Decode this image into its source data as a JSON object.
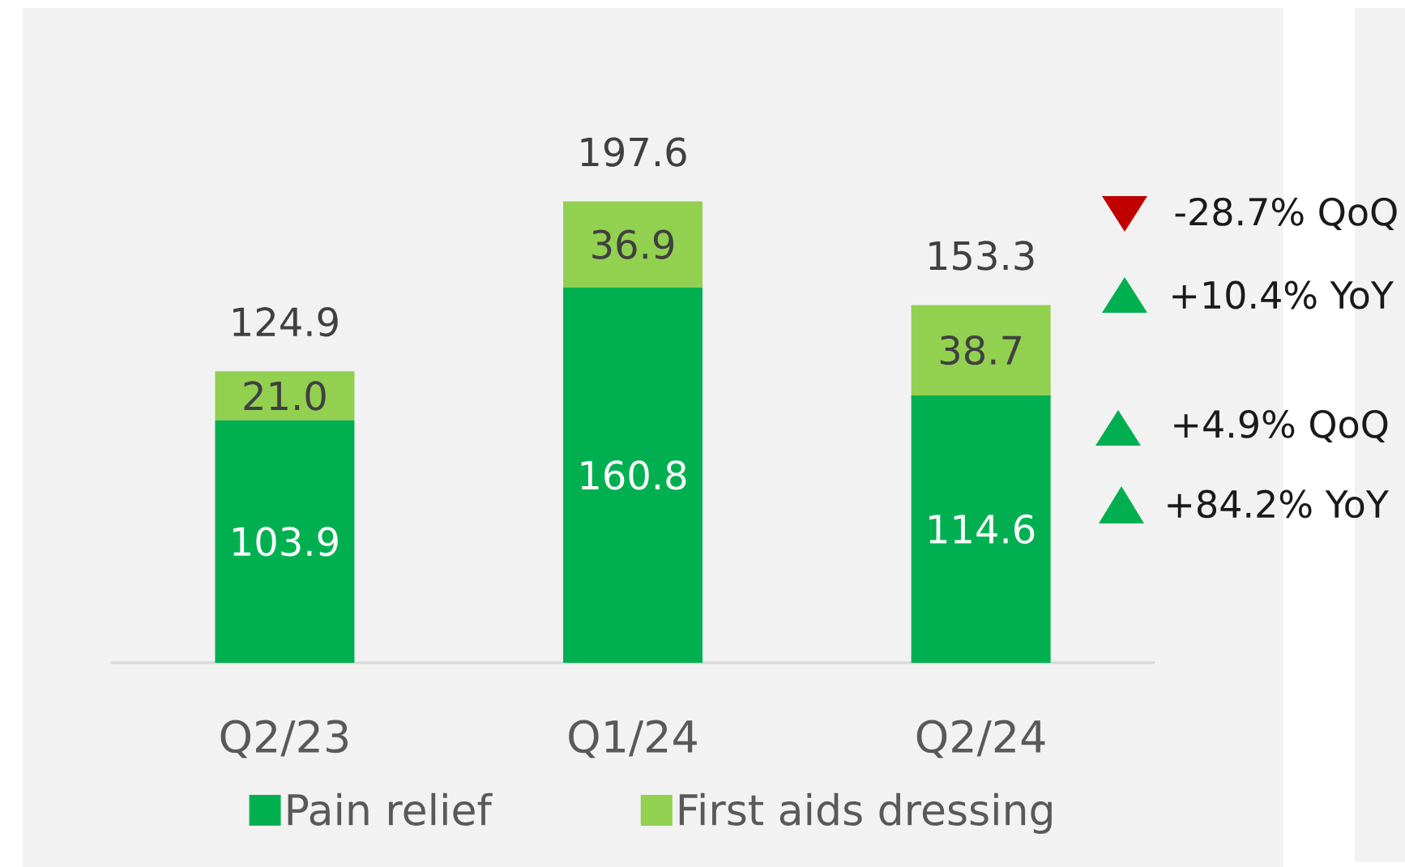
{
  "chart_data": {
    "type": "bar",
    "stacked": true,
    "categories": [
      "Q2/23",
      "Q1/24",
      "Q2/24"
    ],
    "series": [
      {
        "name": "Pain relief",
        "color": "#00b050",
        "values": [
          103.9,
          160.8,
          114.6
        ],
        "value_labels": [
          "103.9",
          "160.8",
          "114.6"
        ]
      },
      {
        "name": "First aids dressing",
        "color": "#92d050",
        "values": [
          21.0,
          36.9,
          38.7
        ],
        "value_labels": [
          "21.0",
          "36.9",
          "38.7"
        ]
      }
    ],
    "totals": [
      "124.9",
      "197.6",
      "153.3"
    ],
    "legend": "bottom",
    "tick_labels": "x",
    "annotations": [
      "-28.7% QoQ",
      "+10.4% YoY",
      "+4.9% QoQ",
      "+84.2% YoY"
    ]
  }
}
